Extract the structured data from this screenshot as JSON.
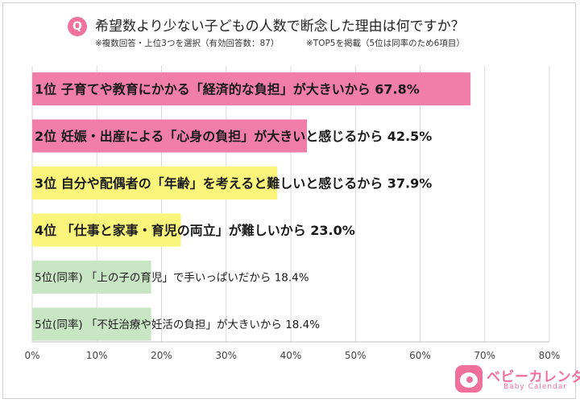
{
  "header": {
    "badge": "Q",
    "title": "希望数より少ない子どもの人数で断念した理由は何ですか？",
    "note_left": "※複数回答・上位3つを選択（有効回答数：87）",
    "note_right": "※TOP5を掲載（5位は同率のため6項目）"
  },
  "brand": {
    "name": "ベビーカレンダー",
    "sub": "Baby Calendar",
    "color": "#f06f9b",
    "icon": "baby-calendar-logo-icon"
  },
  "chart_data": {
    "type": "bar",
    "orientation": "horizontal",
    "title": "希望数より少ない子どもの人数で断念した理由は何ですか？",
    "xlim": [
      0,
      80
    ],
    "ticks": [
      0,
      10,
      20,
      30,
      40,
      50,
      60,
      70,
      80
    ],
    "tick_labels": [
      "0%",
      "10%",
      "20%",
      "30%",
      "40%",
      "50%",
      "60%",
      "70%",
      "80%"
    ],
    "grid": true,
    "categories": [
      "1位 子育てや教育にかかる「経済的な負担」が大きいから",
      "2位 妊娠・出産による「心身の負担」が大きいと感じるから",
      "3位 自分や配偶者の「年齢」を考えると難しいと感じるから",
      "4位 「仕事と家事・育児の両立」が難しいから",
      "5位(同率) 「上の子の育児」で手いっぱいだから",
      "5位(同率) 「不妊治療や妊活の負担」が大きいから"
    ],
    "values": [
      67.8,
      42.5,
      37.9,
      23.0,
      18.4,
      18.4
    ],
    "labels": [
      "1位 子育てや教育にかかる「経済的な負担」が大きいから 67.8%",
      "2位 妊娠・出産による「心身の負担」が大きいと感じるから 42.5%",
      "3位 自分や配偶者の「年齢」を考えると難しいと感じるから 37.9%",
      "4位 「仕事と家事・育児の両立」が難しいから 23.0%",
      "5位(同率) 「上の子の育児」で手いっぱいだから 18.4%",
      "5位(同率) 「不妊治療や妊活の負担」が大きいから 18.4%"
    ],
    "colors": [
      "#f17ea8",
      "#f17ea8",
      "#fbf67b",
      "#fbf67b",
      "#c8e6c3",
      "#c8e6c3"
    ]
  }
}
